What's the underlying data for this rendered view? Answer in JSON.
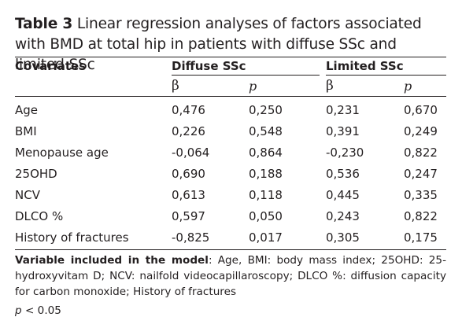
{
  "caption": {
    "label": "Table 3",
    "text": "Linear regression analyses of factors associated with BMD at total hip in patients with diffuse SSc and limited SSc"
  },
  "table": {
    "covariates_header": "Covariates",
    "groups": [
      "Diffuse SSc",
      "Limited SSc"
    ],
    "subheaders": [
      "β",
      "p",
      "β",
      "p"
    ],
    "rows": [
      {
        "label": "Age",
        "values": [
          "0,476",
          "0,250",
          "0,231",
          "0,670"
        ]
      },
      {
        "label": "BMI",
        "values": [
          "0,226",
          "0,548",
          "0,391",
          "0,249"
        ]
      },
      {
        "label": "Menopause age",
        "values": [
          "-0,064",
          "0,864",
          "-0,230",
          "0,822"
        ]
      },
      {
        "label": "25OHD",
        "values": [
          "0,690",
          "0,188",
          "0,536",
          "0,247"
        ]
      },
      {
        "label": "NCV",
        "values": [
          "0,613",
          "0,118",
          "0,445",
          "0,335"
        ]
      },
      {
        "label": "DLCO %",
        "values": [
          "0,597",
          "0,050",
          "0,243",
          "0,822"
        ]
      },
      {
        "label": "History of fractures",
        "values": [
          "-0,825",
          "0,017",
          "0,305",
          "0,175"
        ]
      }
    ]
  },
  "footnote": {
    "label": "Variable included in the model",
    "text": ": Age, BMI: body mass index; 25OHD: 25-hydroxyvitam D; NCV: nailfold videocapillaroscopy; DLCO %: diffusion capacity for carbon monoxide; History of fractures"
  },
  "significance": {
    "symbol": "p",
    "text": " < 0.05"
  }
}
